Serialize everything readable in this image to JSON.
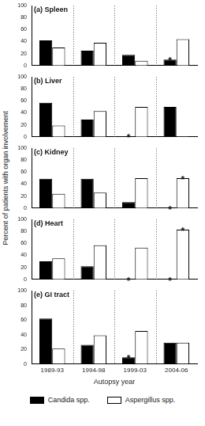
{
  "ylabel": "Percent of patients with organ involvement",
  "chart_data": [
    {
      "type": "bar",
      "title": "(a) Spleen",
      "categories": [
        "1989-93",
        "1994-98",
        "1999-03",
        "2004-06"
      ],
      "series": [
        {
          "name": "Candida spp.",
          "color": "#000000",
          "values": [
            42,
            25,
            18,
            10
          ]
        },
        {
          "name": "Aspergillus spp.",
          "color": "#ffffff",
          "values": [
            30,
            38,
            8,
            44
          ]
        }
      ],
      "ylim": [
        0,
        100
      ],
      "yticks": [
        0,
        20,
        40,
        60,
        80,
        100
      ],
      "grid": false,
      "tick_labels": "y",
      "annotations": [
        {
          "text": "*",
          "category": "2004-06",
          "series": "Candida spp."
        }
      ]
    },
    {
      "type": "bar",
      "title": "(b) Liver",
      "categories": [
        "1989-93",
        "1994-98",
        "1999-03",
        "2004-06"
      ],
      "series": [
        {
          "name": "Candida spp.",
          "color": "#000000",
          "values": [
            57,
            29,
            1,
            50
          ]
        },
        {
          "name": "Aspergillus spp.",
          "color": "#ffffff",
          "values": [
            19,
            43,
            50,
            1
          ]
        }
      ],
      "ylim": [
        0,
        100
      ],
      "yticks": [
        0,
        20,
        40,
        60,
        80,
        100
      ],
      "grid": false,
      "tick_labels": "y",
      "annotations": [
        {
          "text": "*",
          "category": "1999-03",
          "series": "Candida spp."
        }
      ]
    },
    {
      "type": "bar",
      "title": "(c) Kidney",
      "categories": [
        "1989-93",
        "1994-98",
        "1999-03",
        "2004-06"
      ],
      "series": [
        {
          "name": "Candida spp.",
          "color": "#000000",
          "values": [
            49,
            49,
            10,
            0
          ]
        },
        {
          "name": "Aspergillus spp.",
          "color": "#ffffff",
          "values": [
            24,
            26,
            50,
            50
          ]
        }
      ],
      "ylim": [
        0,
        100
      ],
      "yticks": [
        0,
        20,
        40,
        60,
        80,
        100
      ],
      "grid": false,
      "tick_labels": "y",
      "annotations": [
        {
          "text": "*",
          "category": "2004-06",
          "series": "Candida spp."
        },
        {
          "text": "*",
          "category": "2004-06",
          "series": "Aspergillus spp."
        }
      ]
    },
    {
      "type": "bar",
      "title": "(d) Heart",
      "categories": [
        "1989-93",
        "1994-98",
        "1999-03",
        "2004-06"
      ],
      "series": [
        {
          "name": "Candida spp.",
          "color": "#000000",
          "values": [
            30,
            22,
            0,
            0
          ]
        },
        {
          "name": "Aspergillus spp.",
          "color": "#ffffff",
          "values": [
            35,
            57,
            53,
            83
          ]
        }
      ],
      "ylim": [
        0,
        100
      ],
      "yticks": [
        0,
        20,
        40,
        60,
        80,
        100
      ],
      "grid": false,
      "tick_labels": "y",
      "annotations": [
        {
          "text": "*",
          "category": "1999-03",
          "series": "Candida spp."
        },
        {
          "text": "*",
          "category": "2004-06",
          "series": "Candida spp."
        },
        {
          "text": "*",
          "category": "2004-06",
          "series": "Aspergillus spp."
        }
      ]
    },
    {
      "type": "bar",
      "title": "(e) GI tract",
      "categories": [
        "1989-93",
        "1994-98",
        "1999-03",
        "2004-06"
      ],
      "series": [
        {
          "name": "Candida spp.",
          "color": "#000000",
          "values": [
            62,
            26,
            9,
            29
          ]
        },
        {
          "name": "Aspergillus spp.",
          "color": "#ffffff",
          "values": [
            21,
            39,
            45,
            29
          ]
        }
      ],
      "ylim": [
        0,
        100
      ],
      "yticks": [
        0,
        20,
        40,
        60,
        80,
        100
      ],
      "grid": false,
      "xlabel": "Autopsy year",
      "legend": "bottom",
      "annotations": [
        {
          "text": "*",
          "category": "1999-03",
          "series": "Candida spp."
        }
      ]
    }
  ]
}
